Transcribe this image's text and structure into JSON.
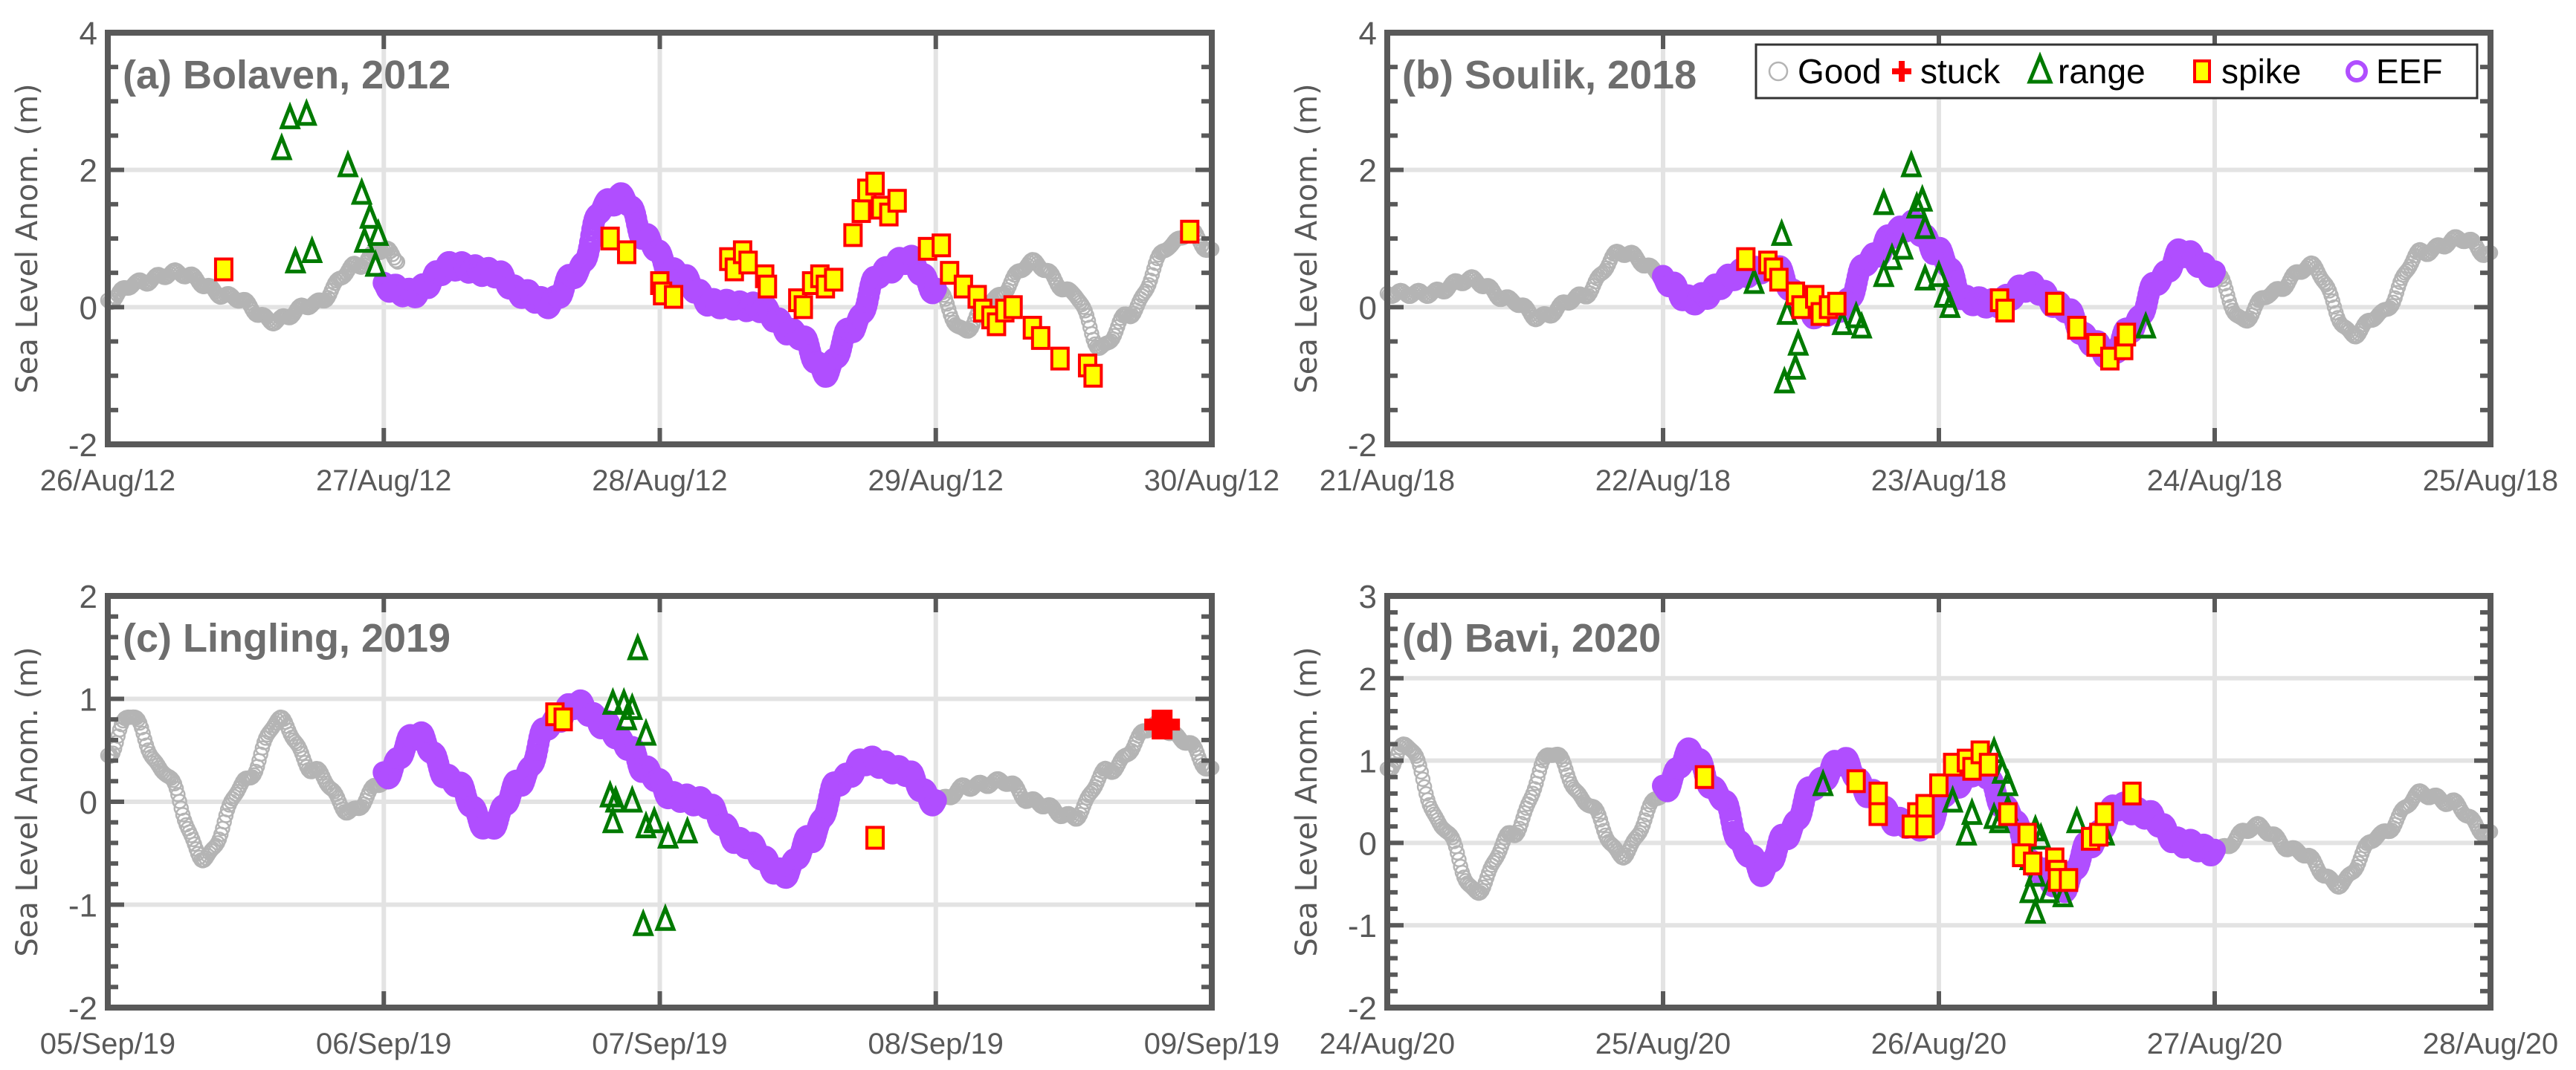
{
  "figure": {
    "ylabel": "Sea Level Anom. (m)",
    "legend": {
      "placement": "top-right of panel (b)",
      "entries": [
        {
          "key": "good",
          "label": "Good",
          "marker": "open-circle",
          "color": "#b4b4b4"
        },
        {
          "key": "stuck",
          "label": "stuck",
          "marker": "plus",
          "color": "#ff0000"
        },
        {
          "key": "range",
          "label": "range",
          "marker": "open-triangle",
          "color": "#007a00"
        },
        {
          "key": "spike",
          "label": "spike",
          "marker": "square",
          "color": "#ffff00",
          "edge": "#ff0000"
        },
        {
          "key": "eef",
          "label": "EEF",
          "marker": "open-circle-thick",
          "color": "#b04eff"
        }
      ]
    },
    "colors": {
      "axis": "#595959",
      "grid": "#e3e3e3",
      "title": "#6e6e6e"
    }
  },
  "chart_data": [
    {
      "type": "scatter",
      "title": "(a) Bolaven, 2012",
      "xlabel": "",
      "ylabel": "Sea Level Anom. (m)",
      "xticks": [
        "26/Aug/12",
        "27/Aug/12",
        "28/Aug/12",
        "29/Aug/12",
        "30/Aug/12"
      ],
      "xlim_days": [
        0,
        4
      ],
      "ylim": [
        -2,
        4
      ],
      "yticks": [
        -2,
        0,
        2,
        4
      ],
      "ygrid": [
        0,
        2
      ],
      "grid": true,
      "good": [
        [
          0,
          0.1
        ],
        [
          0.1,
          0.35
        ],
        [
          0.25,
          0.5
        ],
        [
          0.45,
          0.15
        ],
        [
          0.6,
          -0.2
        ],
        [
          0.75,
          0.05
        ],
        [
          0.9,
          0.6
        ],
        [
          1.0,
          0.85
        ],
        [
          1.05,
          0.7
        ]
      ],
      "eef": [
        [
          1.0,
          0.3
        ],
        [
          1.1,
          0.2
        ],
        [
          1.25,
          0.6
        ],
        [
          1.4,
          0.5
        ],
        [
          1.5,
          0.2
        ],
        [
          1.6,
          0.05
        ],
        [
          1.7,
          0.5
        ],
        [
          1.8,
          1.5
        ],
        [
          1.87,
          1.6
        ],
        [
          1.95,
          1.0
        ],
        [
          2.05,
          0.5
        ],
        [
          2.2,
          0.05
        ],
        [
          2.35,
          0.0
        ],
        [
          2.5,
          -0.4
        ],
        [
          2.6,
          -0.95
        ],
        [
          2.7,
          -0.3
        ],
        [
          2.8,
          0.5
        ],
        [
          2.9,
          0.7
        ],
        [
          3.0,
          0.25
        ]
      ],
      "good_after": [
        [
          3.0,
          0.25
        ],
        [
          3.1,
          -0.35
        ],
        [
          3.2,
          0.1
        ],
        [
          3.35,
          0.65
        ],
        [
          3.5,
          0.2
        ],
        [
          3.6,
          -0.6
        ],
        [
          3.7,
          -0.1
        ],
        [
          3.85,
          0.9
        ],
        [
          3.92,
          1.1
        ],
        [
          4.0,
          0.8
        ]
      ],
      "range": [
        [
          0.63,
          2.3
        ],
        [
          0.66,
          2.75
        ],
        [
          0.72,
          2.8
        ],
        [
          0.68,
          0.65
        ],
        [
          0.74,
          0.8
        ],
        [
          0.87,
          2.05
        ],
        [
          0.92,
          1.65
        ],
        [
          0.95,
          1.3
        ],
        [
          0.98,
          1.05
        ],
        [
          0.93,
          0.95
        ],
        [
          0.97,
          0.6
        ]
      ],
      "spike": [
        [
          0.42,
          0.55
        ],
        [
          1.82,
          1.0
        ],
        [
          1.88,
          0.8
        ],
        [
          2.0,
          0.35
        ],
        [
          2.01,
          0.2
        ],
        [
          2.05,
          0.15
        ],
        [
          2.25,
          0.7
        ],
        [
          2.27,
          0.55
        ],
        [
          2.3,
          0.8
        ],
        [
          2.32,
          0.65
        ],
        [
          2.38,
          0.45
        ],
        [
          2.39,
          0.3
        ],
        [
          2.5,
          0.1
        ],
        [
          2.52,
          0.0
        ],
        [
          2.55,
          0.35
        ],
        [
          2.58,
          0.45
        ],
        [
          2.6,
          0.3
        ],
        [
          2.63,
          0.4
        ],
        [
          2.7,
          1.05
        ],
        [
          2.73,
          1.4
        ],
        [
          2.75,
          1.7
        ],
        [
          2.78,
          1.8
        ],
        [
          2.8,
          1.45
        ],
        [
          2.83,
          1.35
        ],
        [
          2.86,
          1.55
        ],
        [
          2.97,
          0.85
        ],
        [
          3.02,
          0.9
        ],
        [
          3.05,
          0.5
        ],
        [
          3.1,
          0.3
        ],
        [
          3.15,
          0.15
        ],
        [
          3.17,
          -0.05
        ],
        [
          3.2,
          -0.15
        ],
        [
          3.22,
          -0.25
        ],
        [
          3.25,
          -0.05
        ],
        [
          3.28,
          0.0
        ],
        [
          3.35,
          -0.3
        ],
        [
          3.38,
          -0.45
        ],
        [
          3.45,
          -0.75
        ],
        [
          3.55,
          -0.85
        ],
        [
          3.57,
          -1.0
        ],
        [
          3.92,
          1.1
        ]
      ],
      "stuck": []
    },
    {
      "type": "scatter",
      "title": "(b) Soulik, 2018",
      "xlabel": "",
      "ylabel": "Sea Level Anom. (m)",
      "xticks": [
        "21/Aug/18",
        "22/Aug/18",
        "23/Aug/18",
        "24/Aug/18",
        "25/Aug/18"
      ],
      "xlim_days": [
        0,
        4
      ],
      "ylim": [
        -2,
        4
      ],
      "yticks": [
        -2,
        0,
        2,
        4
      ],
      "ygrid": [
        0,
        2
      ],
      "grid": true,
      "good": [
        [
          0,
          0.2
        ],
        [
          0.15,
          0.2
        ],
        [
          0.3,
          0.4
        ],
        [
          0.45,
          0.1
        ],
        [
          0.55,
          -0.15
        ],
        [
          0.7,
          0.15
        ],
        [
          0.85,
          0.8
        ],
        [
          1.0,
          0.5
        ]
      ],
      "eef": [
        [
          1.0,
          0.4
        ],
        [
          1.1,
          0.1
        ],
        [
          1.3,
          0.5
        ],
        [
          1.4,
          0.6
        ],
        [
          1.5,
          0.1
        ],
        [
          1.55,
          -0.1
        ],
        [
          1.65,
          0.0
        ],
        [
          1.75,
          0.7
        ],
        [
          1.85,
          1.1
        ],
        [
          1.9,
          1.2
        ],
        [
          2.0,
          0.8
        ],
        [
          2.1,
          0.1
        ],
        [
          2.2,
          0.05
        ],
        [
          2.33,
          0.3
        ],
        [
          2.45,
          0.0
        ],
        [
          2.55,
          -0.5
        ],
        [
          2.62,
          -0.7
        ],
        [
          2.7,
          -0.3
        ],
        [
          2.8,
          0.4
        ],
        [
          2.88,
          0.8
        ],
        [
          3.0,
          0.5
        ]
      ],
      "good_after": [
        [
          3.0,
          0.5
        ],
        [
          3.1,
          -0.2
        ],
        [
          3.2,
          0.2
        ],
        [
          3.35,
          0.6
        ],
        [
          3.5,
          -0.4
        ],
        [
          3.6,
          -0.1
        ],
        [
          3.75,
          0.8
        ],
        [
          3.9,
          1.0
        ],
        [
          4.0,
          0.75
        ]
      ],
      "range": [
        [
          1.33,
          0.35
        ],
        [
          1.43,
          1.05
        ],
        [
          1.44,
          -1.1
        ],
        [
          1.48,
          -0.9
        ],
        [
          1.49,
          -0.55
        ],
        [
          1.45,
          -0.1
        ],
        [
          1.65,
          -0.25
        ],
        [
          1.7,
          -0.15
        ],
        [
          1.72,
          -0.3
        ],
        [
          1.8,
          0.45
        ],
        [
          1.8,
          1.5
        ],
        [
          1.83,
          0.7
        ],
        [
          1.87,
          0.85
        ],
        [
          1.9,
          2.05
        ],
        [
          1.92,
          1.45
        ],
        [
          1.94,
          1.55
        ],
        [
          1.95,
          1.15
        ],
        [
          1.95,
          0.4
        ],
        [
          2.0,
          0.45
        ],
        [
          2.02,
          0.15
        ],
        [
          2.04,
          0.0
        ],
        [
          2.75,
          -0.3
        ]
      ],
      "spike": [
        [
          1.3,
          0.7
        ],
        [
          1.38,
          0.65
        ],
        [
          1.4,
          0.55
        ],
        [
          1.42,
          0.4
        ],
        [
          1.48,
          0.2
        ],
        [
          1.5,
          0.0
        ],
        [
          1.55,
          0.15
        ],
        [
          1.57,
          -0.1
        ],
        [
          1.6,
          0.0
        ],
        [
          1.63,
          0.05
        ],
        [
          2.22,
          0.1
        ],
        [
          2.24,
          -0.05
        ],
        [
          2.42,
          0.05
        ],
        [
          2.5,
          -0.3
        ],
        [
          2.57,
          -0.55
        ],
        [
          2.62,
          -0.75
        ],
        [
          2.67,
          -0.6
        ],
        [
          2.68,
          -0.4
        ]
      ],
      "stuck": []
    },
    {
      "type": "scatter",
      "title": "(c) Lingling, 2019",
      "xlabel": "",
      "ylabel": "Sea Level Anom. (m)",
      "xticks": [
        "05/Sep/19",
        "06/Sep/19",
        "07/Sep/19",
        "08/Sep/19",
        "09/Sep/19"
      ],
      "xlim_days": [
        0,
        4
      ],
      "ylim": [
        -2,
        2
      ],
      "yticks": [
        -2,
        -1,
        0,
        1,
        2
      ],
      "ygrid": [
        -1,
        0,
        1
      ],
      "grid": true,
      "good": [
        [
          0,
          0.45
        ],
        [
          0.08,
          0.85
        ],
        [
          0.2,
          0.3
        ],
        [
          0.35,
          -0.55
        ],
        [
          0.5,
          0.2
        ],
        [
          0.62,
          0.8
        ],
        [
          0.75,
          0.3
        ],
        [
          0.88,
          -0.1
        ],
        [
          1.0,
          0.2
        ]
      ],
      "eef": [
        [
          1.0,
          0.25
        ],
        [
          1.12,
          0.65
        ],
        [
          1.25,
          0.2
        ],
        [
          1.38,
          -0.25
        ],
        [
          1.5,
          0.2
        ],
        [
          1.6,
          0.75
        ],
        [
          1.7,
          0.95
        ],
        [
          1.8,
          0.75
        ],
        [
          1.88,
          0.55
        ],
        [
          1.95,
          0.3
        ],
        [
          2.05,
          0.05
        ],
        [
          2.15,
          0.0
        ],
        [
          2.3,
          -0.4
        ],
        [
          2.45,
          -0.7
        ],
        [
          2.55,
          -0.35
        ],
        [
          2.65,
          0.2
        ],
        [
          2.75,
          0.4
        ],
        [
          2.88,
          0.3
        ],
        [
          3.0,
          0.0
        ]
      ],
      "good_after": [
        [
          3.0,
          0.0
        ],
        [
          3.12,
          0.15
        ],
        [
          3.25,
          0.2
        ],
        [
          3.35,
          0.0
        ],
        [
          3.5,
          -0.15
        ],
        [
          3.62,
          0.3
        ],
        [
          3.8,
          0.75
        ],
        [
          3.9,
          0.6
        ],
        [
          4.0,
          0.3
        ]
      ],
      "range": [
        [
          1.83,
          0.95
        ],
        [
          1.87,
          0.95
        ],
        [
          1.9,
          0.9
        ],
        [
          1.92,
          1.48
        ],
        [
          1.88,
          0.8
        ],
        [
          1.95,
          0.65
        ],
        [
          1.82,
          0.05
        ],
        [
          1.84,
          0.0
        ],
        [
          1.9,
          0.0
        ],
        [
          1.83,
          -0.2
        ],
        [
          1.95,
          -0.25
        ],
        [
          1.98,
          -0.2
        ],
        [
          2.03,
          -0.35
        ],
        [
          2.1,
          -0.3
        ],
        [
          1.94,
          -1.2
        ],
        [
          2.02,
          -1.15
        ]
      ],
      "spike": [
        [
          1.62,
          0.85
        ],
        [
          1.65,
          0.8
        ],
        [
          2.78,
          -0.35
        ]
      ],
      "stuck": [
        [
          3.82,
          0.75
        ]
      ]
    },
    {
      "type": "scatter",
      "title": "(d) Bavi, 2020",
      "xlabel": "",
      "ylabel": "Sea Level Anom. (m)",
      "xticks": [
        "24/Aug/20",
        "25/Aug/20",
        "26/Aug/20",
        "27/Aug/20",
        "28/Aug/20"
      ],
      "xlim_days": [
        0,
        4
      ],
      "ylim": [
        -2,
        3
      ],
      "yticks": [
        -2,
        -1,
        0,
        1,
        2,
        3
      ],
      "ygrid": [
        -1,
        0,
        1,
        2
      ],
      "grid": true,
      "good": [
        [
          0,
          0.9
        ],
        [
          0.07,
          1.2
        ],
        [
          0.2,
          0.2
        ],
        [
          0.32,
          -0.6
        ],
        [
          0.45,
          0.1
        ],
        [
          0.6,
          1.1
        ],
        [
          0.72,
          0.5
        ],
        [
          0.85,
          -0.15
        ],
        [
          1.0,
          0.6
        ]
      ],
      "eef": [
        [
          1.0,
          0.65
        ],
        [
          1.1,
          1.1
        ],
        [
          1.2,
          0.6
        ],
        [
          1.3,
          -0.1
        ],
        [
          1.36,
          -0.35
        ],
        [
          1.45,
          0.1
        ],
        [
          1.55,
          0.7
        ],
        [
          1.65,
          1.0
        ],
        [
          1.75,
          0.6
        ],
        [
          1.85,
          0.25
        ],
        [
          1.95,
          0.2
        ],
        [
          2.05,
          0.7
        ],
        [
          2.15,
          0.9
        ],
        [
          2.25,
          0.4
        ],
        [
          2.35,
          -0.3
        ],
        [
          2.45,
          -0.55
        ],
        [
          2.55,
          0.0
        ],
        [
          2.65,
          0.45
        ],
        [
          2.75,
          0.35
        ],
        [
          2.88,
          0.0
        ],
        [
          3.0,
          -0.1
        ]
      ],
      "good_after": [
        [
          3.0,
          -0.1
        ],
        [
          3.15,
          0.2
        ],
        [
          3.3,
          -0.1
        ],
        [
          3.45,
          -0.5
        ],
        [
          3.6,
          0.1
        ],
        [
          3.75,
          0.6
        ],
        [
          3.85,
          0.5
        ],
        [
          4.0,
          0.1
        ]
      ],
      "range": [
        [
          1.58,
          0.7
        ],
        [
          2.05,
          0.5
        ],
        [
          2.12,
          0.35
        ],
        [
          2.2,
          1.1
        ],
        [
          2.23,
          0.85
        ],
        [
          2.25,
          0.7
        ],
        [
          2.1,
          0.1
        ],
        [
          2.2,
          0.3
        ],
        [
          2.22,
          0.25
        ],
        [
          2.25,
          0.4
        ],
        [
          2.35,
          0.15
        ],
        [
          2.37,
          0.05
        ],
        [
          2.33,
          -0.2
        ],
        [
          2.35,
          -0.4
        ],
        [
          2.33,
          -0.6
        ],
        [
          2.4,
          -0.6
        ],
        [
          2.45,
          -0.65
        ],
        [
          2.35,
          -0.85
        ],
        [
          2.5,
          0.25
        ],
        [
          2.6,
          0.1
        ]
      ],
      "spike": [
        [
          1.15,
          0.8
        ],
        [
          1.7,
          0.75
        ],
        [
          1.78,
          0.6
        ],
        [
          1.78,
          0.35
        ],
        [
          1.92,
          0.35
        ],
        [
          1.95,
          0.45
        ],
        [
          1.9,
          0.2
        ],
        [
          1.95,
          0.2
        ],
        [
          2.0,
          0.7
        ],
        [
          2.05,
          0.95
        ],
        [
          2.1,
          1.0
        ],
        [
          2.12,
          0.9
        ],
        [
          2.15,
          1.1
        ],
        [
          2.18,
          0.95
        ],
        [
          2.25,
          0.35
        ],
        [
          2.32,
          0.1
        ],
        [
          2.3,
          -0.15
        ],
        [
          2.34,
          -0.25
        ],
        [
          2.42,
          -0.2
        ],
        [
          2.43,
          -0.35
        ],
        [
          2.43,
          -0.45
        ],
        [
          2.47,
          -0.45
        ],
        [
          2.55,
          0.05
        ],
        [
          2.58,
          0.1
        ],
        [
          2.6,
          0.35
        ],
        [
          2.7,
          0.6
        ]
      ],
      "stuck": []
    }
  ]
}
